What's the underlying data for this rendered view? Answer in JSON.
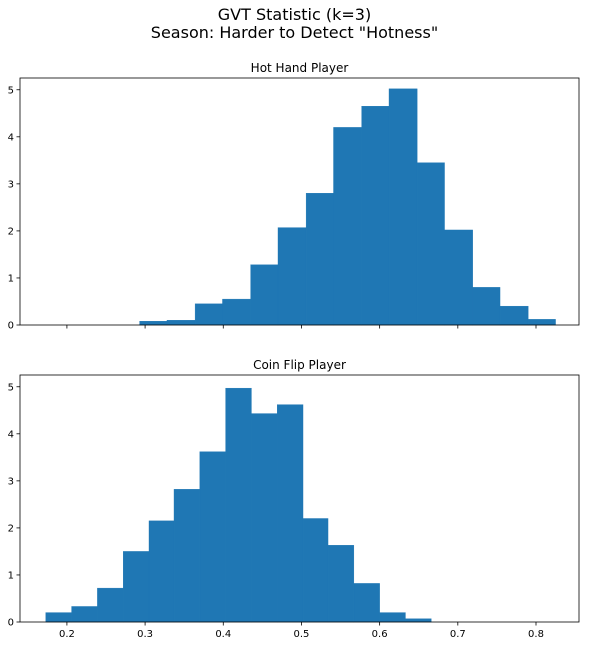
{
  "figure": {
    "title_line1": "GVT Statistic (k=3)",
    "title_line2": "Season: Harder to Detect \"Hotness\""
  },
  "chart_data": [
    {
      "type": "bar",
      "title": "Hot Hand Player",
      "xlabel": "",
      "ylabel": "",
      "color": "#1f77b4",
      "xlim": [
        0.14,
        0.855
      ],
      "ylim": [
        0,
        5.25
      ],
      "xticks": [],
      "yticks": [
        0,
        1,
        2,
        3,
        4,
        5
      ],
      "grid": false,
      "bins": [
        {
          "x0": 0.293,
          "x1": 0.328,
          "value": 0.08
        },
        {
          "x0": 0.328,
          "x1": 0.364,
          "value": 0.1
        },
        {
          "x0": 0.364,
          "x1": 0.399,
          "value": 0.45
        },
        {
          "x0": 0.399,
          "x1": 0.435,
          "value": 0.55
        },
        {
          "x0": 0.435,
          "x1": 0.47,
          "value": 1.28
        },
        {
          "x0": 0.47,
          "x1": 0.506,
          "value": 2.07
        },
        {
          "x0": 0.506,
          "x1": 0.541,
          "value": 2.8
        },
        {
          "x0": 0.541,
          "x1": 0.577,
          "value": 4.2
        },
        {
          "x0": 0.577,
          "x1": 0.612,
          "value": 4.65
        },
        {
          "x0": 0.612,
          "x1": 0.648,
          "value": 5.02
        },
        {
          "x0": 0.648,
          "x1": 0.683,
          "value": 3.45
        },
        {
          "x0": 0.683,
          "x1": 0.719,
          "value": 2.02
        },
        {
          "x0": 0.719,
          "x1": 0.754,
          "value": 0.8
        },
        {
          "x0": 0.754,
          "x1": 0.79,
          "value": 0.4
        },
        {
          "x0": 0.79,
          "x1": 0.825,
          "value": 0.12
        }
      ]
    },
    {
      "type": "bar",
      "title": "Coin Flip Player",
      "xlabel": "",
      "ylabel": "",
      "color": "#1f77b4",
      "xlim": [
        0.14,
        0.855
      ],
      "ylim": [
        0,
        5.25
      ],
      "xticks": [
        0.2,
        0.3,
        0.4,
        0.5,
        0.6,
        0.7,
        0.8
      ],
      "yticks": [
        0,
        1,
        2,
        3,
        4,
        5
      ],
      "grid": false,
      "bins": [
        {
          "x0": 0.173,
          "x1": 0.206,
          "value": 0.2
        },
        {
          "x0": 0.206,
          "x1": 0.239,
          "value": 0.33
        },
        {
          "x0": 0.239,
          "x1": 0.272,
          "value": 0.72
        },
        {
          "x0": 0.272,
          "x1": 0.305,
          "value": 1.5
        },
        {
          "x0": 0.305,
          "x1": 0.337,
          "value": 2.15
        },
        {
          "x0": 0.337,
          "x1": 0.37,
          "value": 2.82
        },
        {
          "x0": 0.37,
          "x1": 0.403,
          "value": 3.62
        },
        {
          "x0": 0.403,
          "x1": 0.436,
          "value": 4.97
        },
        {
          "x0": 0.436,
          "x1": 0.469,
          "value": 4.43
        },
        {
          "x0": 0.469,
          "x1": 0.502,
          "value": 4.62
        },
        {
          "x0": 0.502,
          "x1": 0.534,
          "value": 2.2
        },
        {
          "x0": 0.534,
          "x1": 0.567,
          "value": 1.63
        },
        {
          "x0": 0.567,
          "x1": 0.6,
          "value": 0.82
        },
        {
          "x0": 0.6,
          "x1": 0.633,
          "value": 0.2
        },
        {
          "x0": 0.633,
          "x1": 0.666,
          "value": 0.07
        }
      ]
    }
  ]
}
